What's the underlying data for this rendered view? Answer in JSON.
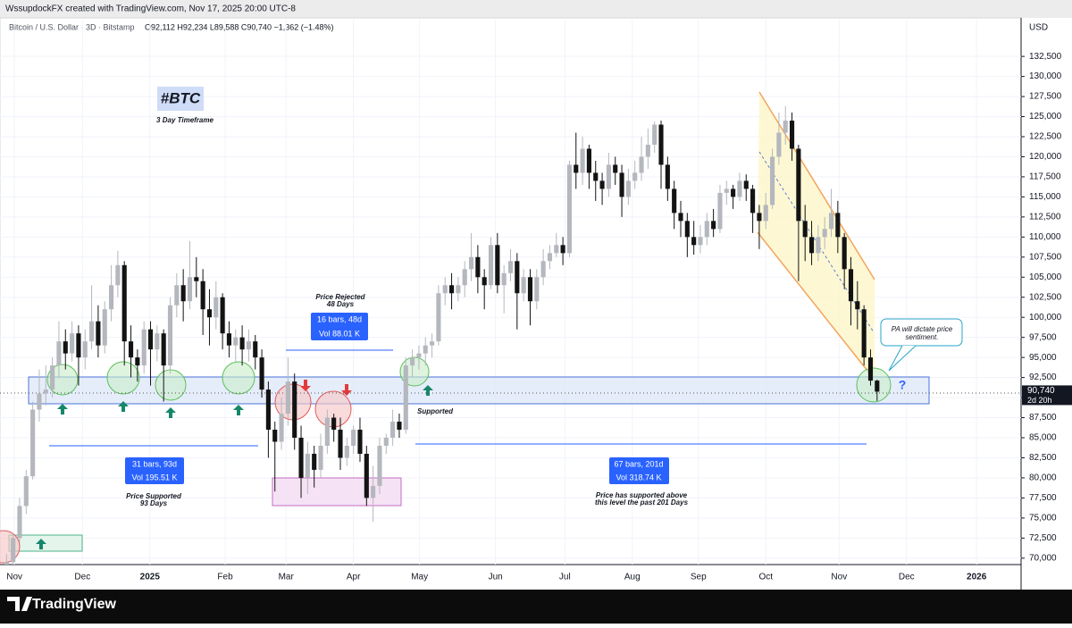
{
  "chart_data": {
    "type": "candlestick",
    "header": "WssupdockFX created with TradingView.com, Nov 17, 2025 20:00 UTC-8",
    "subtitle": "Bitcoin / U.S. Dollar · 3D · Bitstamp",
    "ohlc_text": "O92,112 H92,234 L89,588 C90,740 −1,362 (−1.48%)",
    "currency": "USD",
    "up_color": "#b4b7bd",
    "down_color": "#131313",
    "ylim": [
      69200,
      137300
    ],
    "yticks": [
      {
        "value": 70000,
        "label": "70,000"
      },
      {
        "value": 72500,
        "label": "72,500"
      },
      {
        "value": 75000,
        "label": "75,000"
      },
      {
        "value": 77500,
        "label": "77,500"
      },
      {
        "value": 80000,
        "label": "80,000"
      },
      {
        "value": 82500,
        "label": "82,500"
      },
      {
        "value": 85000,
        "label": "85,000"
      },
      {
        "value": 87500,
        "label": "87,500"
      },
      {
        "value": 90000,
        "label": "90,000"
      },
      {
        "value": 92500,
        "label": "92,500"
      },
      {
        "value": 95000,
        "label": "95,000"
      },
      {
        "value": 97500,
        "label": "97,500"
      },
      {
        "value": 100000,
        "label": "100,000"
      },
      {
        "value": 102500,
        "label": "102,500"
      },
      {
        "value": 105000,
        "label": "105,000"
      },
      {
        "value": 107500,
        "label": "107,500"
      },
      {
        "value": 110000,
        "label": "110,000"
      },
      {
        "value": 112500,
        "label": "112,500"
      },
      {
        "value": 115000,
        "label": "115,000"
      },
      {
        "value": 117500,
        "label": "117,500"
      },
      {
        "value": 120000,
        "label": "120,000"
      },
      {
        "value": 122500,
        "label": "122,500"
      },
      {
        "value": 125000,
        "label": "125,000"
      },
      {
        "value": 127500,
        "label": "127,500"
      },
      {
        "value": 130000,
        "label": "130,000"
      },
      {
        "value": 132500,
        "label": "132,500"
      }
    ],
    "xlim": [
      -1,
      155
    ],
    "xticks": [
      {
        "value": 1.2,
        "label": "Nov"
      },
      {
        "value": 11.6,
        "label": "Dec"
      },
      {
        "value": 21.9,
        "label": "2025"
      },
      {
        "value": 33.4,
        "label": "Feb"
      },
      {
        "value": 42.7,
        "label": "Mar"
      },
      {
        "value": 53.0,
        "label": "Apr"
      },
      {
        "value": 63.1,
        "label": "May"
      },
      {
        "value": 74.7,
        "label": "Jun"
      },
      {
        "value": 85.3,
        "label": "Jul"
      },
      {
        "value": 95.6,
        "label": "Aug"
      },
      {
        "value": 105.7,
        "label": "Sep"
      },
      {
        "value": 116,
        "label": "Oct"
      },
      {
        "value": 127.2,
        "label": "Nov"
      },
      {
        "value": 137.5,
        "label": "Dec"
      },
      {
        "value": 148.2,
        "label": "2026"
      }
    ],
    "last_price": {
      "value": 90740,
      "label": "90,740"
    },
    "countdown": "2d 20h",
    "ohlc": [
      [
        67500,
        70500,
        66800,
        69500
      ],
      [
        69500,
        73000,
        68800,
        72500
      ],
      [
        72500,
        77500,
        72000,
        76500
      ],
      [
        76500,
        81000,
        75500,
        80200
      ],
      [
        80200,
        89500,
        79800,
        88500
      ],
      [
        88500,
        93500,
        87000,
        90500
      ],
      [
        90500,
        94000,
        89000,
        91000
      ],
      [
        91000,
        95000,
        90000,
        94000
      ],
      [
        94000,
        99500,
        92500,
        97000
      ],
      [
        97000,
        98500,
        93500,
        95500
      ],
      [
        95500,
        99500,
        94500,
        98000
      ],
      [
        98000,
        99000,
        91500,
        95000
      ],
      [
        95000,
        98500,
        93500,
        97000
      ],
      [
        97000,
        104000,
        96000,
        99500
      ],
      [
        99500,
        101500,
        95000,
        96500
      ],
      [
        96500,
        102000,
        95500,
        101000
      ],
      [
        101000,
        106500,
        99500,
        104000
      ],
      [
        104000,
        108300,
        102500,
        106500
      ],
      [
        106500,
        107000,
        94000,
        97000
      ],
      [
        97000,
        99000,
        92500,
        95000
      ],
      [
        95000,
        96000,
        92000,
        94000
      ],
      [
        94000,
        99500,
        93000,
        98500
      ],
      [
        98500,
        99500,
        91500,
        96000
      ],
      [
        96000,
        99000,
        94500,
        98000
      ],
      [
        98000,
        98500,
        89500,
        94000
      ],
      [
        94000,
        102500,
        93000,
        101500
      ],
      [
        101500,
        105500,
        100000,
        104000
      ],
      [
        104000,
        106000,
        99500,
        102000
      ],
      [
        102000,
        109500,
        101000,
        105000
      ],
      [
        105000,
        107500,
        102500,
        104500
      ],
      [
        104500,
        106000,
        97800,
        101000
      ],
      [
        101000,
        103500,
        96500,
        100000
      ],
      [
        100000,
        104500,
        98500,
        102500
      ],
      [
        102500,
        103000,
        96000,
        98000
      ],
      [
        98000,
        99500,
        95000,
        96500
      ],
      [
        96500,
        98500,
        94500,
        97500
      ],
      [
        97500,
        99000,
        94000,
        96000
      ],
      [
        96000,
        98500,
        94500,
        97000
      ],
      [
        97000,
        97800,
        93500,
        95000
      ],
      [
        95000,
        96000,
        90000,
        91000
      ],
      [
        91000,
        92000,
        82500,
        86000
      ],
      [
        86000,
        87000,
        78300,
        84500
      ],
      [
        84500,
        90000,
        83500,
        88000
      ],
      [
        88000,
        95000,
        86500,
        92000
      ],
      [
        92000,
        93000,
        83500,
        85000
      ],
      [
        85000,
        86500,
        77500,
        80000
      ],
      [
        80000,
        84500,
        78000,
        83000
      ],
      [
        83000,
        84000,
        78800,
        81000
      ],
      [
        81000,
        85500,
        80000,
        84000
      ],
      [
        84000,
        88500,
        83000,
        87500
      ],
      [
        87500,
        88000,
        84500,
        86000
      ],
      [
        86000,
        87500,
        81000,
        82500
      ],
      [
        82500,
        85000,
        81500,
        84000
      ],
      [
        84000,
        86500,
        83000,
        86000
      ],
      [
        86000,
        87500,
        82000,
        83000
      ],
      [
        83000,
        84000,
        76500,
        77500
      ],
      [
        77500,
        81500,
        74500,
        79000
      ],
      [
        79000,
        85000,
        78000,
        84000
      ],
      [
        84000,
        85500,
        83000,
        85000
      ],
      [
        85000,
        88500,
        84000,
        87000
      ],
      [
        87000,
        88000,
        85000,
        86000
      ],
      [
        86000,
        95000,
        85500,
        94000
      ],
      [
        94000,
        96000,
        92500,
        95000
      ],
      [
        95000,
        96500,
        93500,
        95500
      ],
      [
        95500,
        97500,
        94000,
        96500
      ],
      [
        96500,
        98000,
        95000,
        97000
      ],
      [
        97000,
        104000,
        96500,
        103000
      ],
      [
        103000,
        105000,
        101500,
        104000
      ],
      [
        104000,
        105500,
        101000,
        103000
      ],
      [
        103000,
        105000,
        102000,
        104000
      ],
      [
        104000,
        107000,
        102500,
        106000
      ],
      [
        106000,
        110500,
        104500,
        107500
      ],
      [
        107500,
        109000,
        103000,
        105000
      ],
      [
        105000,
        106000,
        101000,
        104000
      ],
      [
        104000,
        110000,
        103500,
        109000
      ],
      [
        109000,
        110500,
        103000,
        104000
      ],
      [
        104000,
        106500,
        100500,
        105500
      ],
      [
        105500,
        108500,
        104500,
        107000
      ],
      [
        107000,
        108000,
        98500,
        103000
      ],
      [
        103000,
        106000,
        102000,
        105000
      ],
      [
        105000,
        106000,
        99000,
        102000
      ],
      [
        102000,
        106000,
        101000,
        105000
      ],
      [
        105000,
        108500,
        104000,
        107000
      ],
      [
        107000,
        109000,
        106000,
        108000
      ],
      [
        108000,
        110500,
        107500,
        109000
      ],
      [
        109000,
        110000,
        106500,
        108000
      ],
      [
        108000,
        119500,
        107500,
        119000
      ],
      [
        119000,
        123000,
        116000,
        118000
      ],
      [
        118000,
        122500,
        116500,
        121000
      ],
      [
        121000,
        121500,
        116000,
        118000
      ],
      [
        118000,
        119500,
        114500,
        117000
      ],
      [
        117000,
        118000,
        114000,
        116000
      ],
      [
        116000,
        120500,
        115000,
        119000
      ],
      [
        119000,
        120000,
        116500,
        118000
      ],
      [
        118000,
        119000,
        112500,
        115000
      ],
      [
        115000,
        118500,
        114000,
        117000
      ],
      [
        117000,
        119500,
        116000,
        118000
      ],
      [
        118000,
        122500,
        117000,
        120000
      ],
      [
        120000,
        123500,
        118500,
        121500
      ],
      [
        121500,
        124400,
        120500,
        124000
      ],
      [
        124000,
        124500,
        116000,
        119000
      ],
      [
        119000,
        120000,
        114500,
        116000
      ],
      [
        116000,
        117000,
        111000,
        113000
      ],
      [
        113000,
        114500,
        110000,
        112000
      ],
      [
        112000,
        113000,
        107500,
        110000
      ],
      [
        110000,
        112000,
        107800,
        109000
      ],
      [
        109000,
        111500,
        108000,
        110000
      ],
      [
        110000,
        113000,
        109000,
        112000
      ],
      [
        112000,
        113500,
        110000,
        111000
      ],
      [
        111000,
        116500,
        110500,
        115500
      ],
      [
        115500,
        117000,
        114000,
        116000
      ],
      [
        116000,
        116500,
        113500,
        115000
      ],
      [
        115000,
        118000,
        114500,
        117000
      ],
      [
        117000,
        117800,
        114500,
        116000
      ],
      [
        116000,
        116500,
        110500,
        113000
      ],
      [
        113000,
        114000,
        108500,
        112000
      ],
      [
        112000,
        115500,
        111000,
        114000
      ],
      [
        114000,
        121000,
        113500,
        120000
      ],
      [
        120000,
        125500,
        119000,
        123000
      ],
      [
        123000,
        126300,
        121500,
        124500
      ],
      [
        124500,
        125500,
        119500,
        121000
      ],
      [
        121000,
        121500,
        104500,
        112000
      ],
      [
        112000,
        114000,
        107000,
        110000
      ],
      [
        110000,
        112000,
        106500,
        108000
      ],
      [
        108000,
        111500,
        107000,
        110000
      ],
      [
        110000,
        112500,
        108500,
        111000
      ],
      [
        111000,
        116000,
        110000,
        113000
      ],
      [
        113000,
        114500,
        108000,
        110000
      ],
      [
        110000,
        110500,
        103500,
        106000
      ],
      [
        106000,
        107500,
        99000,
        102000
      ],
      [
        102000,
        104500,
        98500,
        101000
      ],
      [
        101000,
        101500,
        94000,
        95000
      ],
      [
        95000,
        96000,
        91500,
        92112
      ],
      [
        92112,
        92234,
        89588,
        90740
      ]
    ],
    "annotations": {
      "tag": "#BTC",
      "timeframe": "3 Day Timeframe",
      "rejected_1": "Price Rejected",
      "rejected_2": "48 Days",
      "range_a_1": "16 bars, 48d",
      "range_a_2": "Vol 88.01 K",
      "range_b_1": "31 bars, 93d",
      "range_b_2": "Vol 195.51 K",
      "supported_b_1": "Price Supported",
      "supported_b_2": "93 Days",
      "supported": "Supported",
      "range_c_1": "67 bars, 201d",
      "range_c_2": "Vol 318.74 K",
      "supported_c_1": "Price has supported above",
      "supported_c_2": "this level the past 201 Days",
      "callout_1": "PA will dictate price",
      "callout_2": "sentiment.",
      "question": "?"
    },
    "brand": "TradingView"
  }
}
